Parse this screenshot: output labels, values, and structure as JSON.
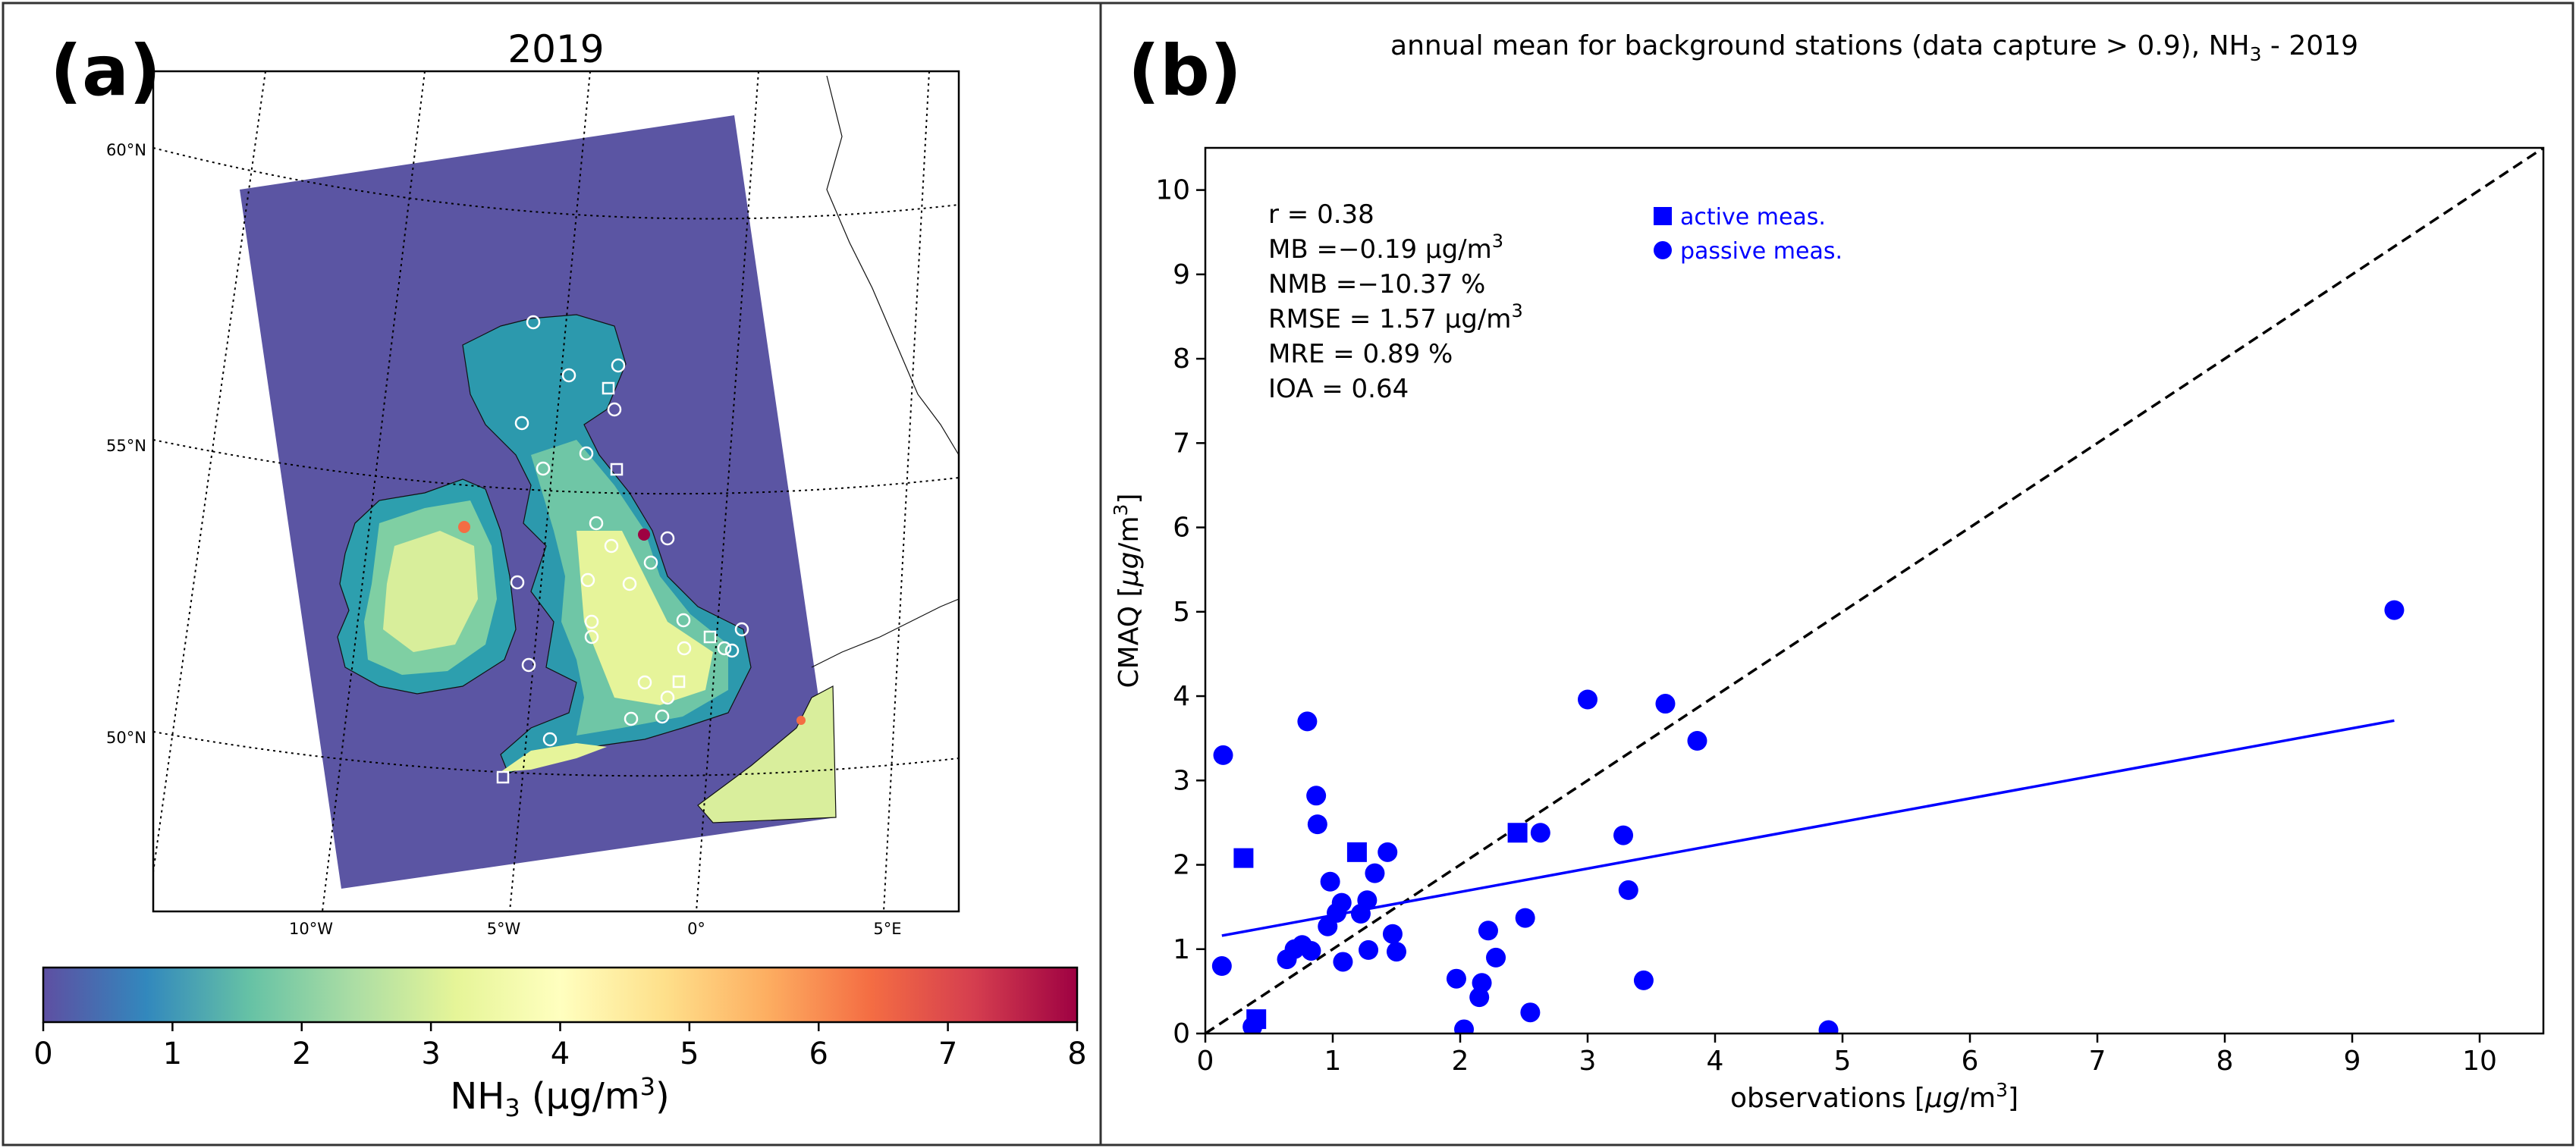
{
  "figure": {
    "left_panel": {
      "label": "(a)",
      "title": "2019",
      "lat_labels": [
        "60°N",
        "55°N",
        "50°N"
      ],
      "lon_labels": [
        "10°W",
        "5°W",
        "0°",
        "5°E"
      ],
      "colorbar": {
        "ticks": [
          "0",
          "1",
          "2",
          "3",
          "4",
          "5",
          "6",
          "7",
          "8"
        ],
        "label_main": "NH",
        "label_sub": "3",
        "label_unit": " (μg/m",
        "label_sup": "3",
        "label_close": ")",
        "colors": [
          "#5e4fa2",
          "#3288bd",
          "#66c2a5",
          "#abdda4",
          "#e6f598",
          "#ffffbf",
          "#fee08b",
          "#fdae61",
          "#f46d43",
          "#d53e4f",
          "#9e0142"
        ]
      },
      "map_colors": {
        "sea_low": "#5b55a3",
        "land_low": "#2a9fb0",
        "land_mid": "#6cc9a4",
        "land_high": "#e8f39a"
      }
    },
    "right_panel": {
      "label": "(b)",
      "title": "annual mean for background stations (data capture > 0.9), NH",
      "title_sub": "3",
      "title_tail": " - 2019",
      "stats": [
        "r = 0.38",
        "MB =−0.19 μg/m",
        "NMB =−10.37 %",
        "RMSE = 1.57 μg/m",
        "MRE = 0.89 %",
        "IOA = 0.64"
      ],
      "stats_sup": "3",
      "legend": [
        "active meas.",
        "passive meas."
      ]
    }
  },
  "chart_data": {
    "type": "scatter",
    "title": "annual mean for background stations (data capture > 0.9), NH3 - 2019",
    "xlabel": "observations [μg/m³]",
    "ylabel": "CMAQ [μg/m³]",
    "xlim": [
      0,
      10.5
    ],
    "ylim": [
      0,
      10.5
    ],
    "xticks": [
      0,
      1,
      2,
      3,
      4,
      5,
      6,
      7,
      8,
      9,
      10
    ],
    "yticks": [
      0,
      1,
      2,
      3,
      4,
      5,
      6,
      7,
      8,
      9,
      10
    ],
    "color": "#0000ff",
    "identity_line": {
      "from": [
        0,
        0
      ],
      "to": [
        10.5,
        10.5
      ],
      "style": "dashed",
      "color": "#000000"
    },
    "regression_line": {
      "from": [
        0.13,
        1.16
      ],
      "to": [
        9.33,
        3.71
      ],
      "color": "#0000ff"
    },
    "series": [
      {
        "name": "active meas.",
        "marker": "square",
        "points": [
          [
            0.3,
            2.08
          ],
          [
            0.4,
            0.17
          ],
          [
            1.19,
            2.15
          ],
          [
            2.45,
            2.38
          ]
        ]
      },
      {
        "name": "passive meas.",
        "marker": "circle",
        "points": [
          [
            0.13,
            0.8
          ],
          [
            0.14,
            3.3
          ],
          [
            0.37,
            0.08
          ],
          [
            0.64,
            0.88
          ],
          [
            0.7,
            1.0
          ],
          [
            0.76,
            1.05
          ],
          [
            0.8,
            3.7
          ],
          [
            0.83,
            0.98
          ],
          [
            0.87,
            2.82
          ],
          [
            0.88,
            2.48
          ],
          [
            0.96,
            1.27
          ],
          [
            0.98,
            1.8
          ],
          [
            1.03,
            1.43
          ],
          [
            1.07,
            1.55
          ],
          [
            1.08,
            0.85
          ],
          [
            1.22,
            1.42
          ],
          [
            1.27,
            1.58
          ],
          [
            1.28,
            0.99
          ],
          [
            1.33,
            1.9
          ],
          [
            1.43,
            2.15
          ],
          [
            1.47,
            1.18
          ],
          [
            1.5,
            0.97
          ],
          [
            1.97,
            0.65
          ],
          [
            2.03,
            0.05
          ],
          [
            2.15,
            0.43
          ],
          [
            2.17,
            0.6
          ],
          [
            2.22,
            1.22
          ],
          [
            2.28,
            0.9
          ],
          [
            2.51,
            1.37
          ],
          [
            2.55,
            0.25
          ],
          [
            2.63,
            2.38
          ],
          [
            3.0,
            3.96
          ],
          [
            3.28,
            2.35
          ],
          [
            3.32,
            1.7
          ],
          [
            3.44,
            0.63
          ],
          [
            3.61,
            3.91
          ],
          [
            3.86,
            3.47
          ],
          [
            4.89,
            0.04
          ],
          [
            9.33,
            5.02
          ]
        ]
      }
    ]
  }
}
